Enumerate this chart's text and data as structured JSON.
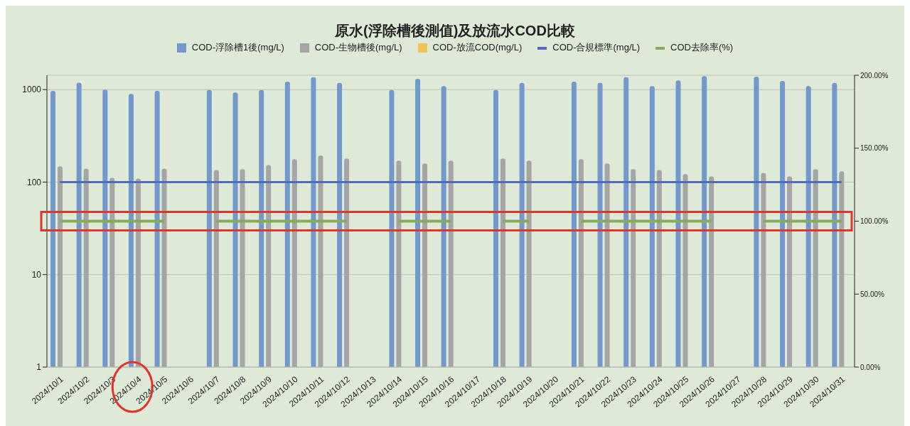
{
  "chart_data": {
    "type": "bar",
    "title": "原水(浮除槽後測值)及放流水COD比較",
    "categories": [
      "2024/10/1",
      "2024/10/2",
      "2024/10/3",
      "2024/10/4",
      "2024/10/5",
      "2024/10/6",
      "2024/10/7",
      "2024/10/8",
      "2024/10/9",
      "2024/10/10",
      "2024/10/11",
      "2024/10/12",
      "2024/10/13",
      "2024/10/14",
      "2024/10/15",
      "2024/10/16",
      "2024/10/17",
      "2024/10/18",
      "2024/10/19",
      "2024/10/20",
      "2024/10/21",
      "2024/10/22",
      "2024/10/23",
      "2024/10/24",
      "2024/10/25",
      "2024/10/26",
      "2024/10/27",
      "2024/10/28",
      "2024/10/29",
      "2024/10/30",
      "2024/10/31"
    ],
    "series": [
      {
        "name": "COD-浮除槽1後(mg/L)",
        "color": "#7399cc",
        "values": [
          970,
          1190,
          1000,
          900,
          970,
          null,
          990,
          930,
          990,
          1220,
          1360,
          1180,
          null,
          990,
          1310,
          1090,
          null,
          990,
          1180,
          null,
          1220,
          1180,
          1360,
          1090,
          1260,
          1400,
          null,
          1380,
          1240,
          1090,
          1180
        ]
      },
      {
        "name": "COD-生物槽後(mg/L)",
        "color": "#a5a5a5",
        "values": [
          148,
          140,
          111,
          109,
          140,
          null,
          135,
          138,
          153,
          177,
          194,
          180,
          null,
          171,
          159,
          171,
          null,
          180,
          171,
          null,
          177,
          159,
          138,
          135,
          122,
          115,
          null,
          126,
          115,
          138,
          131
        ]
      },
      {
        "name": "COD-放流COD(mg/L)",
        "color": "#f0c35a",
        "values": [
          null,
          null,
          null,
          null,
          null,
          null,
          null,
          null,
          null,
          null,
          null,
          null,
          null,
          null,
          null,
          null,
          null,
          null,
          null,
          null,
          null,
          null,
          null,
          null,
          null,
          null,
          null,
          null,
          null,
          null,
          null
        ]
      },
      {
        "name": "COD-合規標準(mg/L)",
        "type": "line",
        "color": "#4f6bbf",
        "values": [
          100,
          100,
          100,
          100,
          100,
          100,
          100,
          100,
          100,
          100,
          100,
          100,
          100,
          100,
          100,
          100,
          100,
          100,
          100,
          100,
          100,
          100,
          100,
          100,
          100,
          100,
          100,
          100,
          100,
          100,
          100
        ]
      },
      {
        "name": "COD去除率(%)",
        "type": "line",
        "axis": "y2",
        "color": "#84ac5c",
        "values": [
          100,
          100,
          100,
          100,
          100,
          null,
          100,
          100,
          100,
          100,
          100,
          100,
          null,
          100,
          100,
          100,
          null,
          100,
          100,
          null,
          100,
          100,
          100,
          100,
          100,
          100,
          null,
          100,
          100,
          100,
          100
        ]
      }
    ],
    "log": "y",
    "ylim": [
      1,
      1430
    ],
    "yticks": [
      1,
      10,
      100,
      1000
    ],
    "y2lim": [
      0,
      200
    ],
    "y2ticks": [
      {
        "value": 0,
        "label": "0.00%"
      },
      {
        "value": 50,
        "label": "50.00%"
      },
      {
        "value": 100,
        "label": "100.00%"
      },
      {
        "value": 150,
        "label": "150.00%"
      },
      {
        "value": 200,
        "label": "200.00%"
      }
    ],
    "grid": "y",
    "legend": "top"
  }
}
